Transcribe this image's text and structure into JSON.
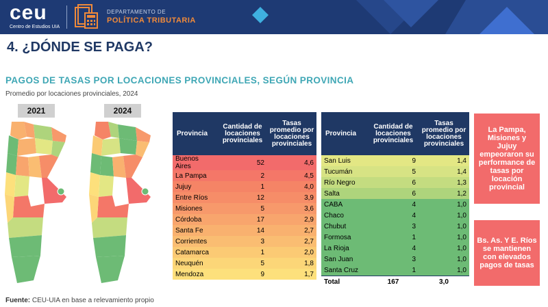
{
  "header": {
    "logo": "ceu",
    "logo_sub": "Centro de Estudios UIA",
    "department": "DEPARTAMENTO DE",
    "department_name": "POLÍTICA TRIBUTARIA"
  },
  "title": "4. ¿DÓNDE SE PAGA?",
  "subtitle": "PAGOS DE TASAS POR LOCACIONES PROVINCIALES, SEGÚN PROVINCIA",
  "note": "Promedio por locaciones provinciales, 2024",
  "years": [
    "2021",
    "2024"
  ],
  "columns": {
    "provincia": "Provincia",
    "cantidad": "Cantidad de locaciones provinciales",
    "tasas": "Tasas promedio por locaciones provinciales"
  },
  "table_left": [
    {
      "provincia": "Buenos Aires",
      "cantidad": "52",
      "tasas": "4,6",
      "color": "#f26b6b"
    },
    {
      "provincia": "La Pampa",
      "cantidad": "2",
      "tasas": "4,5",
      "color": "#f47768"
    },
    {
      "provincia": "Jujuy",
      "cantidad": "1",
      "tasas": "4,0",
      "color": "#f58466"
    },
    {
      "provincia": "Entre Ríos",
      "cantidad": "12",
      "tasas": "3,9",
      "color": "#f68d68"
    },
    {
      "provincia": "Misiones",
      "cantidad": "5",
      "tasas": "3,6",
      "color": "#f7996b"
    },
    {
      "provincia": "Córdoba",
      "cantidad": "17",
      "tasas": "2,9",
      "color": "#f8a56d"
    },
    {
      "provincia": "Santa Fe",
      "cantidad": "14",
      "tasas": "2,7",
      "color": "#f9b16f"
    },
    {
      "provincia": "Corrientes",
      "cantidad": "3",
      "tasas": "2,7",
      "color": "#fabd72"
    },
    {
      "provincia": "Catamarca",
      "cantidad": "1",
      "tasas": "2,0",
      "color": "#fbca74"
    },
    {
      "provincia": "Neuquén",
      "cantidad": "5",
      "tasas": "1,8",
      "color": "#fcd678"
    },
    {
      "provincia": "Mendoza",
      "cantidad": "9",
      "tasas": "1,7",
      "color": "#fde07c"
    }
  ],
  "table_right": [
    {
      "provincia": "San Luis",
      "cantidad": "9",
      "tasas": "1,4",
      "color": "#e3e784"
    },
    {
      "provincia": "Tucumán",
      "cantidad": "5",
      "tasas": "1,4",
      "color": "#d7e384"
    },
    {
      "provincia": "Río Negro",
      "cantidad": "6",
      "tasas": "1,3",
      "color": "#c4dc80"
    },
    {
      "provincia": "Salta",
      "cantidad": "6",
      "tasas": "1,2",
      "color": "#aed47c"
    },
    {
      "provincia": "CABA",
      "cantidad": "4",
      "tasas": "1,0",
      "color": "#6dbb75"
    },
    {
      "provincia": "Chaco",
      "cantidad": "4",
      "tasas": "1,0",
      "color": "#6dbb75"
    },
    {
      "provincia": "Chubut",
      "cantidad": "3",
      "tasas": "1,0",
      "color": "#6dbb75"
    },
    {
      "provincia": "Formosa",
      "cantidad": "1",
      "tasas": "1,0",
      "color": "#6dbb75"
    },
    {
      "provincia": "La Rioja",
      "cantidad": "4",
      "tasas": "1,0",
      "color": "#6dbb75"
    },
    {
      "provincia": "San Juan",
      "cantidad": "3",
      "tasas": "1,0",
      "color": "#6dbb75"
    },
    {
      "provincia": "Santa Cruz",
      "cantidad": "1",
      "tasas": "1,0",
      "color": "#6dbb75"
    }
  ],
  "total": {
    "label": "Total",
    "cantidad": "167",
    "tasas": "3,0"
  },
  "callouts": [
    "La Pampa, Misiones y Jujuy empeoraron su performance de tasas por locación provincial",
    "Bs. As. Y E. Ríos se mantienen con elevados pagos de tasas"
  ],
  "source_label": "Fuente:",
  "source_text": "CEU-UIA en base a relevamiento propio",
  "colors": {
    "header_bg": "#1e3a74",
    "accent_orange": "#f08a3a",
    "title": "#1f3864",
    "subtitle": "#3fa7b5",
    "callout": "#f26b6b"
  }
}
